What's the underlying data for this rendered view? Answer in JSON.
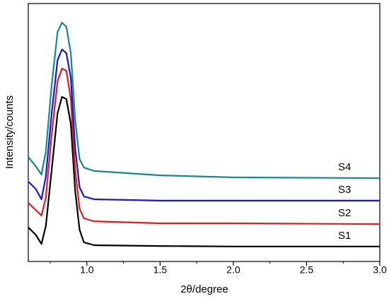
{
  "chart_data": {
    "type": "line",
    "xlabel": "2θ/degree",
    "ylabel": "Intensity/counts",
    "x": [
      0.6,
      0.65,
      0.69,
      0.72,
      0.76,
      0.8,
      0.83,
      0.86,
      0.89,
      0.92,
      0.95,
      0.98,
      1.05,
      1.5,
      2.0,
      3.0
    ],
    "series": [
      {
        "name": "S1",
        "color": "#000000",
        "values": [
          13.2,
          10.4,
          6.8,
          13.7,
          35.6,
          57.5,
          63.8,
          63.0,
          53.4,
          27.4,
          12.3,
          7.4,
          6.3,
          6.0,
          5.8,
          5.8
        ]
      },
      {
        "name": "S2",
        "color": "#e8191b",
        "values": [
          22.7,
          20.0,
          17.8,
          24.7,
          49.3,
          69.9,
          74.8,
          74.0,
          63.0,
          35.6,
          20.5,
          16.7,
          15.6,
          14.8,
          14.8,
          14.5
        ]
      },
      {
        "name": "S3",
        "color": "#1515e0",
        "values": [
          31.0,
          28.2,
          24.1,
          32.9,
          57.5,
          78.1,
          82.2,
          80.8,
          71.2,
          43.8,
          28.8,
          25.2,
          24.1,
          23.6,
          23.6,
          23.6
        ]
      },
      {
        "name": "S4",
        "color": "#138a8a",
        "values": [
          40.5,
          37.0,
          33.7,
          42.5,
          68.5,
          89.0,
          92.6,
          91.0,
          80.8,
          54.8,
          39.7,
          36.4,
          35.1,
          33.4,
          32.6,
          32.3
        ]
      }
    ],
    "xlim": [
      0.6,
      3.0
    ],
    "xticks": [
      {
        "value": 1,
        "label": "1.0"
      },
      {
        "value": 1.5,
        "label": "1.5"
      },
      {
        "value": 2,
        "label": "2.0"
      },
      {
        "value": 2.5,
        "label": "2.5"
      },
      {
        "value": 3,
        "label": "3.0"
      }
    ],
    "xminorticks": [
      0.75,
      1.25,
      1.75,
      2.25,
      2.75
    ],
    "ylim": [
      0,
      100
    ]
  }
}
